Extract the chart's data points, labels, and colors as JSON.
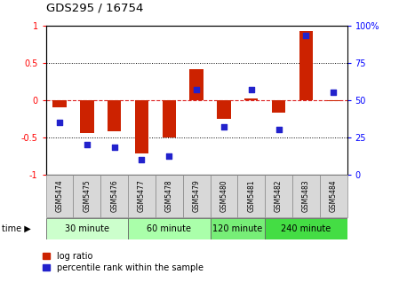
{
  "title": "GDS295 / 16754",
  "samples": [
    "GSM5474",
    "GSM5475",
    "GSM5476",
    "GSM5477",
    "GSM5478",
    "GSM5479",
    "GSM5480",
    "GSM5481",
    "GSM5482",
    "GSM5483",
    "GSM5484"
  ],
  "log_ratio": [
    -0.1,
    -0.45,
    -0.42,
    -0.72,
    -0.5,
    0.41,
    -0.25,
    0.02,
    -0.17,
    0.92,
    -0.02
  ],
  "percentile": [
    35,
    20,
    18,
    10,
    12,
    57,
    32,
    57,
    30,
    93,
    55
  ],
  "groups": [
    {
      "label": "30 minute",
      "start": 0,
      "end": 2,
      "color": "#ccffcc"
    },
    {
      "label": "60 minute",
      "start": 3,
      "end": 5,
      "color": "#aaffaa"
    },
    {
      "label": "120 minute",
      "start": 6,
      "end": 7,
      "color": "#77ee77"
    },
    {
      "label": "240 minute",
      "start": 8,
      "end": 10,
      "color": "#44dd44"
    }
  ],
  "ylim_left": [
    -1.0,
    1.0
  ],
  "ylim_right": [
    0,
    100
  ],
  "yticks_left": [
    -1,
    -0.5,
    0,
    0.5,
    1
  ],
  "yticks_right": [
    0,
    25,
    50,
    75,
    100
  ],
  "bar_color": "#cc2200",
  "scatter_color": "#2222cc",
  "hline_color": "#dd2222",
  "dotted_color": "black"
}
